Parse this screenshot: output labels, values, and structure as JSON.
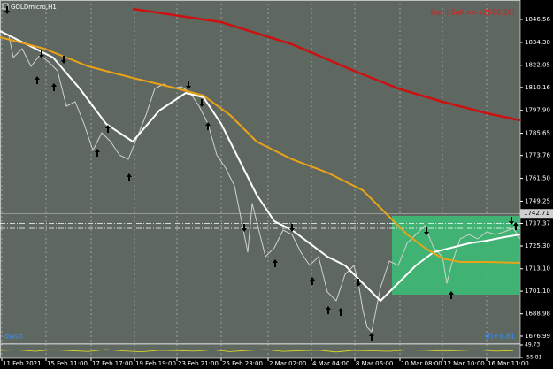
{
  "chart_data": {
    "type": "line",
    "title": "GOLDmicro,H1",
    "annotation": "Buy | Sell >> (2580.18)",
    "footer_left": "dwsb",
    "footer_right": "(f)+9.81",
    "background": "#5f6761",
    "xlim": [
      0,
      588
    ],
    "ylim": [
      1673.19,
      1855.09
    ],
    "xticks": [
      {
        "value": 2,
        "label": "11 Feb 2021"
      },
      {
        "value": 52,
        "label": "15 Feb 11:00"
      },
      {
        "value": 103,
        "label": "17 Feb 17:00"
      },
      {
        "value": 152,
        "label": "19 Feb 19:00"
      },
      {
        "value": 200,
        "label": "23 Feb 21:00"
      },
      {
        "value": 250,
        "label": "25 Feb 23:00"
      },
      {
        "value": 303,
        "label": "2 Mar 02:00"
      },
      {
        "value": 352,
        "label": "4 Mar 04:00"
      },
      {
        "value": 401,
        "label": "8 Mar 06:00"
      },
      {
        "value": 452,
        "label": "10 Mar 08:00"
      },
      {
        "value": 500,
        "label": "12 Mar 10:00"
      },
      {
        "value": 550,
        "label": "16 Mar 11:00"
      }
    ],
    "yticks": [
      1846.56,
      {
        "value": 1834.3,
        "label": "1834.30"
      },
      1822.05,
      1810.16,
      {
        "value": 1797.9,
        "label": "1797.90"
      },
      1785.65,
      1773.76,
      {
        "value": 1761.5,
        "label": "1761.50"
      },
      1749.25,
      1737.37,
      {
        "value": 1725.3,
        "label": "1725.30"
      },
      {
        "value": 1713.1,
        "label": "1713.10"
      },
      {
        "value": 1701.1,
        "label": "1701.10"
      },
      1688.98,
      1676.99
    ],
    "price_line": 1742.71,
    "dash_levels": [
      1737.37,
      1734.77
    ],
    "series": [
      {
        "color": "#cfd2cf",
        "width": 1,
        "x": [
          0,
          10,
          15,
          25,
          35,
          45,
          55,
          65,
          75,
          85,
          95,
          105,
          115,
          125,
          135,
          145,
          155,
          165,
          175,
          185,
          195,
          205,
          215,
          225,
          235,
          245,
          255,
          265,
          275,
          280,
          285,
          290,
          300,
          310,
          320,
          330,
          340,
          350,
          360,
          370,
          380,
          390,
          400,
          405,
          410,
          415,
          420,
          430,
          440,
          450,
          460,
          470,
          480,
          490,
          500,
          505,
          510,
          520,
          530,
          540,
          550,
          560,
          570,
          580,
          588
        ],
        "values": [
          1840.4,
          1838.03,
          1826.19,
          1830.93,
          1821.45,
          1827.61,
          1823.82,
          1819.09,
          1800.14,
          1802.51,
          1790.66,
          1776.45,
          1785.93,
          1781.19,
          1774.08,
          1771.72,
          1783.56,
          1795.4,
          1809.61,
          1811.98,
          1809.61,
          1810.56,
          1807.24,
          1800.14,
          1790.66,
          1774.08,
          1766.98,
          1757.5,
          1733.82,
          1721.98,
          1748.03,
          1738.56,
          1719.61,
          1724.35,
          1733.82,
          1731.45,
          1721.98,
          1714.87,
          1719.61,
          1700.66,
          1695.92,
          1710.14,
          1714.87,
          1705.4,
          1691.19,
          1681.71,
          1679.34,
          1703.03,
          1717.24,
          1714.87,
          1726.71,
          1731.45,
          1736.19,
          1724.35,
          1719.61,
          1705.4,
          1714.87,
          1729.08,
          1731.45,
          1729.08,
          1732.87,
          1731.45,
          1732.87,
          1734.77,
          1729.08
        ]
      },
      {
        "color": "#ffffff",
        "width": 2,
        "x": [
          0,
          30,
          60,
          90,
          120,
          150,
          180,
          210,
          230,
          250,
          270,
          290,
          310,
          330,
          350,
          370,
          390,
          410,
          430,
          450,
          470,
          490,
          510,
          530,
          550,
          570,
          588
        ],
        "values": [
          1840.4,
          1833.3,
          1826.19,
          1809.61,
          1790.66,
          1781.19,
          1797.77,
          1807.24,
          1804.87,
          1790.66,
          1771.72,
          1752.77,
          1738.56,
          1733.82,
          1726.71,
          1719.61,
          1714.87,
          1705.4,
          1695.92,
          1705.4,
          1714.87,
          1721.98,
          1724.35,
          1726.71,
          1728.13,
          1730.03,
          1731.45
        ]
      },
      {
        "color": "#e8a317",
        "width": 2,
        "x": [
          0,
          50,
          100,
          150,
          200,
          230,
          260,
          290,
          330,
          370,
          410,
          440,
          460,
          480,
          500,
          520,
          550,
          588
        ],
        "values": [
          1837.09,
          1830.93,
          1821.45,
          1815.29,
          1809.61,
          1805.82,
          1795.4,
          1781.19,
          1771.72,
          1764.61,
          1755.14,
          1740.93,
          1731.45,
          1724.35,
          1718.66,
          1716.77,
          1716.77,
          1716.29
        ]
      },
      {
        "color": "#cc1111",
        "width": 2.5,
        "x": [
          150,
          250,
          330,
          400,
          450,
          500,
          550,
          588
        ],
        "values": [
          1852.24,
          1845.14,
          1833.3,
          1819.09,
          1809.61,
          1802.51,
          1796.35,
          1792.56
        ]
      }
    ],
    "sell_signals": {
      "x": [
        8,
        47,
        72,
        213,
        228,
        276,
        330,
        405,
        482,
        578
      ],
      "values": [
        1851.3,
        1827.61,
        1824.77,
        1811.03,
        1801.56,
        1734.77,
        1734.77,
        1705.4,
        1732.87,
        1738.56
      ]
    },
    "buy_signals": {
      "x": [
        42,
        61,
        122,
        110,
        146,
        235,
        311,
        353,
        371,
        385,
        420,
        510,
        583
      ],
      "values": [
        1814.35,
        1810.56,
        1788.3,
        1775.51,
        1762.24,
        1789.72,
        1716.29,
        1706.82,
        1691.19,
        1690.24,
        1676.98,
        1699.24,
        1736.19
      ]
    },
    "zone": {
      "x": [
        443,
        588
      ],
      "y": [
        1699.24,
        1741.4
      ],
      "color": "#3dbb77"
    },
    "indicator": {
      "color": "#e8e020",
      "ylim": [
        -55.81,
        49.73
      ],
      "yticks": [
        49.73,
        -55.81
      ],
      "x": [
        0,
        20,
        40,
        60,
        80,
        100,
        120,
        140,
        160,
        180,
        200,
        220,
        240,
        260,
        280,
        300,
        320,
        340,
        360,
        380,
        400,
        420,
        440,
        460,
        480,
        500,
        520,
        540,
        560,
        580
      ],
      "values": [
        5,
        8,
        -3,
        10,
        2,
        -5,
        12,
        0,
        -8,
        6,
        3,
        -2,
        9,
        -6,
        4,
        11,
        -4,
        2,
        7,
        -9,
        5,
        1,
        -3,
        8,
        6,
        -1,
        4,
        10,
        -2,
        3
      ]
    }
  }
}
